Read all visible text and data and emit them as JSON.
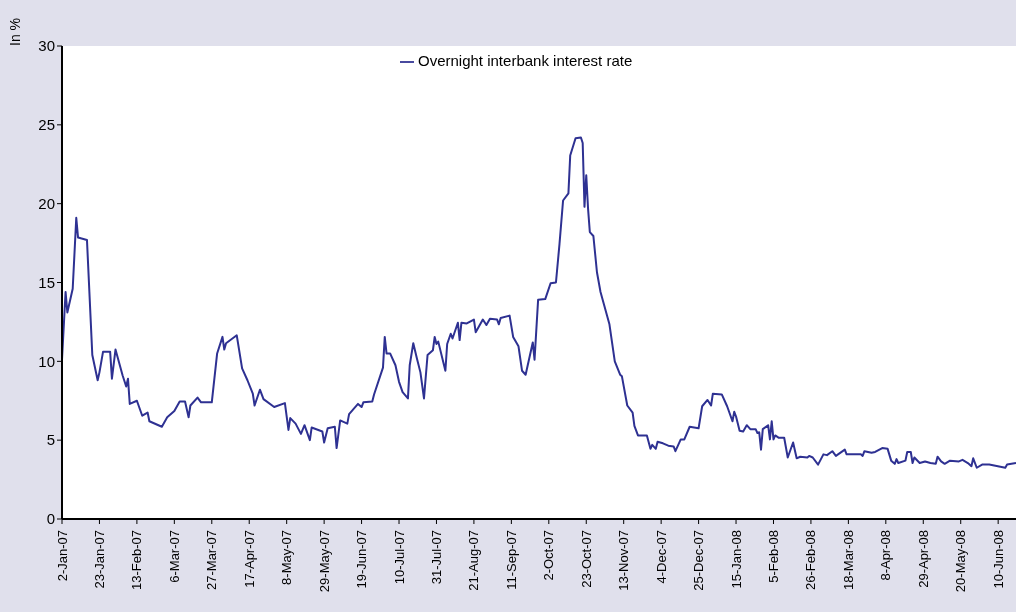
{
  "chart_data": {
    "type": "line",
    "ylabel": "In %",
    "legend": "top",
    "xlim": [
      "2007-01-02",
      "2008-06-20"
    ],
    "xticks": [
      {
        "value": "2007-01-02",
        "label": "2-Jan-07"
      },
      {
        "value": "2007-01-23",
        "label": "23-Jan-07"
      },
      {
        "value": "2007-02-13",
        "label": "13-Feb-07"
      },
      {
        "value": "2007-03-06",
        "label": "6-Mar-07"
      },
      {
        "value": "2007-03-27",
        "label": "27-Mar-07"
      },
      {
        "value": "2007-04-17",
        "label": "17-Apr-07"
      },
      {
        "value": "2007-05-08",
        "label": "8-May-07"
      },
      {
        "value": "2007-05-29",
        "label": "29-May-07"
      },
      {
        "value": "2007-06-19",
        "label": "19-Jun-07"
      },
      {
        "value": "2007-07-10",
        "label": "10-Jul-07"
      },
      {
        "value": "2007-07-31",
        "label": "31-Jul-07"
      },
      {
        "value": "2007-08-21",
        "label": "21-Aug-07"
      },
      {
        "value": "2007-09-11",
        "label": "11-Sep-07"
      },
      {
        "value": "2007-10-02",
        "label": "2-Oct-07"
      },
      {
        "value": "2007-10-23",
        "label": "23-Oct-07"
      },
      {
        "value": "2007-11-13",
        "label": "13-Nov-07"
      },
      {
        "value": "2007-12-04",
        "label": "4-Dec-07"
      },
      {
        "value": "2007-12-25",
        "label": "25-Dec-07"
      },
      {
        "value": "2008-01-15",
        "label": "15-Jan-08"
      },
      {
        "value": "2008-02-05",
        "label": "5-Feb-08"
      },
      {
        "value": "2008-02-26",
        "label": "26-Feb-08"
      },
      {
        "value": "2008-03-18",
        "label": "18-Mar-08"
      },
      {
        "value": "2008-04-08",
        "label": "8-Apr-08"
      },
      {
        "value": "2008-04-29",
        "label": "29-Apr-08"
      },
      {
        "value": "2008-05-20",
        "label": "20-May-08"
      },
      {
        "value": "2008-06-10",
        "label": "10-Jun-08"
      }
    ],
    "ylim": [
      0,
      30
    ],
    "yticks": [
      0,
      5,
      10,
      15,
      20,
      25,
      30
    ],
    "series": [
      {
        "name": "Overnight interbank interest rate",
        "color": "#2e3192",
        "x": [
          "2007-01-02",
          "2007-01-04",
          "2007-01-05",
          "2007-01-08",
          "2007-01-10",
          "2007-01-11",
          "2007-01-16",
          "2007-01-19",
          "2007-01-22",
          "2007-01-23",
          "2007-01-25",
          "2007-01-29",
          "2007-01-30",
          "2007-02-01",
          "2007-02-05",
          "2007-02-07",
          "2007-02-08",
          "2007-02-09",
          "2007-02-13",
          "2007-02-16",
          "2007-02-19",
          "2007-02-20",
          "2007-02-27",
          "2007-03-02",
          "2007-03-06",
          "2007-03-09",
          "2007-03-12",
          "2007-03-14",
          "2007-03-15",
          "2007-03-19",
          "2007-03-21",
          "2007-03-27",
          "2007-03-30",
          "2007-04-02",
          "2007-04-03",
          "2007-04-04",
          "2007-04-10",
          "2007-04-13",
          "2007-04-16",
          "2007-04-19",
          "2007-04-20",
          "2007-04-23",
          "2007-04-25",
          "2007-05-01",
          "2007-05-07",
          "2007-05-09",
          "2007-05-10",
          "2007-05-13",
          "2007-05-16",
          "2007-05-18",
          "2007-05-21",
          "2007-05-22",
          "2007-05-28",
          "2007-05-29",
          "2007-05-31",
          "2007-06-04",
          "2007-06-05",
          "2007-06-07",
          "2007-06-11",
          "2007-06-12",
          "2007-06-17",
          "2007-06-19",
          "2007-06-20",
          "2007-06-25",
          "2007-06-26",
          "2007-07-01",
          "2007-07-02",
          "2007-07-03",
          "2007-07-05",
          "2007-07-08",
          "2007-07-10",
          "2007-07-12",
          "2007-07-15",
          "2007-07-16",
          "2007-07-18",
          "2007-07-20",
          "2007-07-22",
          "2007-07-24",
          "2007-07-26",
          "2007-07-29",
          "2007-07-30",
          "2007-07-31",
          "2007-08-01",
          "2007-08-05",
          "2007-08-06",
          "2007-08-08",
          "2007-08-09",
          "2007-08-12",
          "2007-08-13",
          "2007-08-14",
          "2007-08-17",
          "2007-08-21",
          "2007-08-22",
          "2007-08-26",
          "2007-08-28",
          "2007-08-30",
          "2007-09-03",
          "2007-09-04",
          "2007-09-05",
          "2007-09-10",
          "2007-09-12",
          "2007-09-15",
          "2007-09-17",
          "2007-09-19",
          "2007-09-23",
          "2007-09-24",
          "2007-09-26",
          "2007-09-30",
          "2007-10-03",
          "2007-10-06",
          "2007-10-08",
          "2007-10-10",
          "2007-10-13",
          "2007-10-14",
          "2007-10-17",
          "2007-10-20",
          "2007-10-21",
          "2007-10-22",
          "2007-10-23",
          "2007-10-24",
          "2007-10-25",
          "2007-10-27",
          "2007-10-29",
          "2007-10-31",
          "2007-11-05",
          "2007-11-08",
          "2007-11-11",
          "2007-11-12",
          "2007-11-15",
          "2007-11-18",
          "2007-11-19",
          "2007-11-21",
          "2007-11-26",
          "2007-11-28",
          "2007-11-29",
          "2007-12-01",
          "2007-12-02",
          "2007-12-05",
          "2007-12-08",
          "2007-12-11",
          "2007-12-12",
          "2007-12-15",
          "2007-12-17",
          "2007-12-20",
          "2007-12-25",
          "2007-12-27",
          "2007-12-30",
          "2008-01-01",
          "2008-01-02",
          "2008-01-07",
          "2008-01-10",
          "2008-01-13",
          "2008-01-14",
          "2008-01-15",
          "2008-01-17",
          "2008-01-19",
          "2008-01-21",
          "2008-01-23",
          "2008-01-26",
          "2008-01-27",
          "2008-01-28",
          "2008-01-29",
          "2008-01-30",
          "2008-02-02",
          "2008-02-03",
          "2008-02-04",
          "2008-02-05",
          "2008-02-06",
          "2008-02-08",
          "2008-02-11",
          "2008-02-13",
          "2008-02-16",
          "2008-02-18",
          "2008-02-20",
          "2008-02-24",
          "2008-02-25",
          "2008-02-27",
          "2008-03-01",
          "2008-03-04",
          "2008-03-06",
          "2008-03-09",
          "2008-03-11",
          "2008-03-16",
          "2008-03-17",
          "2008-03-25",
          "2008-03-26",
          "2008-03-27",
          "2008-03-31",
          "2008-04-02",
          "2008-04-06",
          "2008-04-09",
          "2008-04-11",
          "2008-04-13",
          "2008-04-14",
          "2008-04-15",
          "2008-04-19",
          "2008-04-20",
          "2008-04-22",
          "2008-04-23",
          "2008-04-24",
          "2008-04-27",
          "2008-04-30",
          "2008-05-03",
          "2008-05-06",
          "2008-05-07",
          "2008-05-09",
          "2008-05-11",
          "2008-05-14",
          "2008-05-19",
          "2008-05-21",
          "2008-05-24",
          "2008-05-26",
          "2008-05-27",
          "2008-05-29",
          "2008-06-01",
          "2008-06-05",
          "2008-06-14",
          "2008-06-15",
          "2008-06-20"
        ],
        "values": [
          10.1,
          14.4,
          13.1,
          14.6,
          19.1,
          17.85,
          17.7,
          10.4,
          8.8,
          9.3,
          10.6,
          10.6,
          8.9,
          10.75,
          9.1,
          8.4,
          8.9,
          7.3,
          7.5,
          6.55,
          6.75,
          6.2,
          5.85,
          6.45,
          6.85,
          7.45,
          7.45,
          6.45,
          7.2,
          7.7,
          7.4,
          7.4,
          10.5,
          11.55,
          10.75,
          11.15,
          11.65,
          9.55,
          8.8,
          7.95,
          7.2,
          8.2,
          7.6,
          7.1,
          7.35,
          5.65,
          6.4,
          6.05,
          5.4,
          5.95,
          5.0,
          5.8,
          5.55,
          4.85,
          5.75,
          5.85,
          4.5,
          6.25,
          6.05,
          6.65,
          7.3,
          7.1,
          7.4,
          7.45,
          7.9,
          9.6,
          11.55,
          10.5,
          10.5,
          9.75,
          8.7,
          8.05,
          7.65,
          9.75,
          11.15,
          10.2,
          9.3,
          7.65,
          10.4,
          10.7,
          11.55,
          11.1,
          11.25,
          9.4,
          11.1,
          11.75,
          11.45,
          12.45,
          11.35,
          12.45,
          12.4,
          12.65,
          11.85,
          12.65,
          12.3,
          12.7,
          12.65,
          12.35,
          12.75,
          12.9,
          11.55,
          10.95,
          9.4,
          9.15,
          11.2,
          10.1,
          13.9,
          13.95,
          14.95,
          15.0,
          17.45,
          20.2,
          20.65,
          23.05,
          24.15,
          24.2,
          23.85,
          19.8,
          21.8,
          19.7,
          18.2,
          17.95,
          15.65,
          14.4,
          12.35,
          10.0,
          9.15,
          9.05,
          7.2,
          6.75,
          5.9,
          5.3,
          5.3,
          4.45,
          4.7,
          4.45,
          4.9,
          4.8,
          4.65,
          4.6,
          4.3,
          5.05,
          5.05,
          5.85,
          5.75,
          7.15,
          7.55,
          7.2,
          7.95,
          7.9,
          7.15,
          6.2,
          6.8,
          6.5,
          5.6,
          5.55,
          5.95,
          5.7,
          5.7,
          5.45,
          5.5,
          4.4,
          5.7,
          5.95,
          5.05,
          6.2,
          5.05,
          5.3,
          5.15,
          5.15,
          3.9,
          4.85,
          3.85,
          3.95,
          3.9,
          4.0,
          3.9,
          3.45,
          4.1,
          4.05,
          4.3,
          4.0,
          4.4,
          4.1,
          4.1,
          4.0,
          4.3,
          4.2,
          4.25,
          4.5,
          4.45,
          3.7,
          3.5,
          3.8,
          3.55,
          3.7,
          4.25,
          4.25,
          3.55,
          3.9,
          3.55,
          3.65,
          3.55,
          3.5,
          3.95,
          3.65,
          3.5,
          3.7,
          3.65,
          3.75,
          3.55,
          3.35,
          3.85,
          3.25,
          3.45,
          3.45,
          3.25,
          3.45,
          3.55
        ]
      }
    ]
  }
}
